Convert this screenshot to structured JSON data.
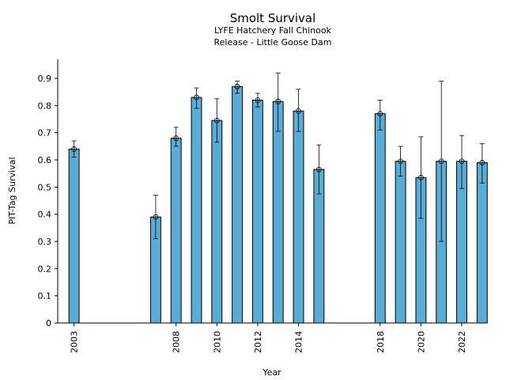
{
  "chart_data": {
    "type": "bar",
    "title": "Smolt Survival",
    "subtitle_1": "LYFE Hatchery Fall Chinook",
    "subtitle_2": "Release - Little Goose Dam",
    "xlabel": "Year",
    "ylabel": "PIT-Tag Survival",
    "ylim": [
      0,
      0.97
    ],
    "xlim": [
      2002.2,
      2023.2
    ],
    "yticks": [
      0,
      0.1,
      0.2,
      0.3,
      0.4,
      0.5,
      0.6,
      0.7,
      0.8,
      0.9
    ],
    "ytick_labels": [
      "0",
      "0.1",
      "0.2",
      "0.3",
      "0.4",
      "0.5",
      "0.6",
      "0.7",
      "0.8",
      "0.9"
    ],
    "xticks": [
      2003,
      2008,
      2010,
      2012,
      2014,
      2018,
      2020,
      2022
    ],
    "xtick_labels": [
      "2003",
      "2008",
      "2010",
      "2012",
      "2014",
      "2018",
      "2020",
      "2022"
    ],
    "bar_color": "#5aabd6",
    "edge_color": "#000000",
    "points": [
      {
        "year": 2003,
        "value": 0.64,
        "lower": 0.61,
        "upper": 0.67
      },
      {
        "year": 2007,
        "value": 0.39,
        "lower": 0.31,
        "upper": 0.47
      },
      {
        "year": 2008,
        "value": 0.68,
        "lower": 0.65,
        "upper": 0.72
      },
      {
        "year": 2009,
        "value": 0.83,
        "lower": 0.79,
        "upper": 0.865
      },
      {
        "year": 2010,
        "value": 0.745,
        "lower": 0.665,
        "upper": 0.825
      },
      {
        "year": 2011,
        "value": 0.87,
        "lower": 0.845,
        "upper": 0.89
      },
      {
        "year": 2012,
        "value": 0.82,
        "lower": 0.795,
        "upper": 0.845
      },
      {
        "year": 2013,
        "value": 0.815,
        "lower": 0.705,
        "upper": 0.92
      },
      {
        "year": 2014,
        "value": 0.78,
        "lower": 0.705,
        "upper": 0.86
      },
      {
        "year": 2015,
        "value": 0.565,
        "lower": 0.475,
        "upper": 0.655
      },
      {
        "year": 2018,
        "value": 0.77,
        "lower": 0.71,
        "upper": 0.82
      },
      {
        "year": 2019,
        "value": 0.595,
        "lower": 0.54,
        "upper": 0.65
      },
      {
        "year": 2020,
        "value": 0.535,
        "lower": 0.385,
        "upper": 0.685
      },
      {
        "year": 2021,
        "value": 0.595,
        "lower": 0.3,
        "upper": 0.89
      },
      {
        "year": 2022,
        "value": 0.595,
        "lower": 0.495,
        "upper": 0.69
      },
      {
        "year": 2023,
        "value": 0.59,
        "lower": 0.515,
        "upper": 0.66
      }
    ]
  }
}
